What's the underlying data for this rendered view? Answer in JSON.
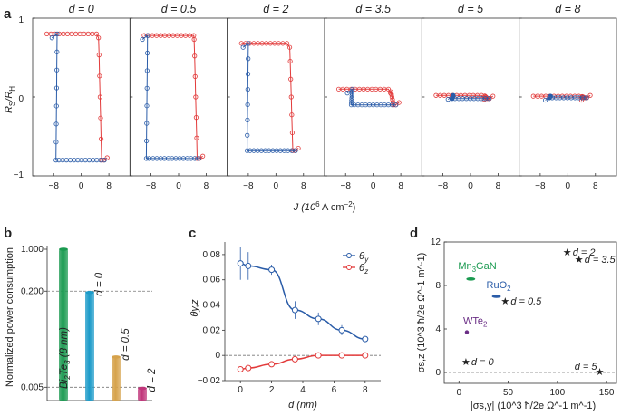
{
  "panel_labels": {
    "a": "a",
    "b": "b",
    "c": "c",
    "d": "d"
  },
  "colors": {
    "blue": "#2a5ca8",
    "red": "#e23a3a",
    "green": "#1a9a50",
    "cyan": "#1c9bc9",
    "gold": "#d6a24b",
    "magenta": "#c0357a",
    "purple": "#6a2e85"
  },
  "chart_data": [
    {
      "type": "line",
      "panel": "a",
      "title": "",
      "ylabel": "R_S/R_H",
      "ylabel_parts": {
        "base": "R",
        "sub1": "S",
        "sep": "/R",
        "sub2": "H"
      },
      "xlabel": "J (10^6 A cm^-2)",
      "xlabel_parts": {
        "pre": "J (10",
        "sup1": "6",
        "mid": " A cm",
        "sup2": "−2",
        "post": ")"
      },
      "xlim": [
        -12,
        12
      ],
      "ylim": [
        -1,
        1
      ],
      "xticks": [
        "−8",
        "0",
        "8"
      ],
      "yticks": [
        "1",
        "0",
        "−1"
      ],
      "subpanels": [
        {
          "title": "d = 0",
          "amp": 0.8,
          "sw_pos": 5,
          "sw_neg": -7,
          "partial": 0.0
        },
        {
          "title": "d = 0.5",
          "amp": 0.78,
          "sw_pos": 4.5,
          "sw_neg": -9,
          "partial": 0.0
        },
        {
          "title": "d = 2",
          "amp": 0.68,
          "sw_pos": 4,
          "sw_neg": -8,
          "partial": 0.0
        },
        {
          "title": "d = 3.5",
          "amp": 0.1,
          "sw_pos": 5,
          "sw_neg": -6,
          "partial": 0.0
        },
        {
          "title": "d = 5",
          "amp": 0.02,
          "sw_pos": 4,
          "sw_neg": -5,
          "partial": 0.0
        },
        {
          "title": "d = 8",
          "amp": 0.01,
          "sw_pos": 4,
          "sw_neg": -5,
          "partial": 0.0
        }
      ]
    },
    {
      "type": "bar",
      "panel": "b",
      "ylabel": "Normalized power consumption",
      "yscale": "log",
      "yticks": [
        "1.000",
        "0.200",
        "0.005"
      ],
      "ytick_values": [
        1.0,
        0.2,
        0.005
      ],
      "categories": [
        "Bi2Te3 (8 nm)",
        "d = 0",
        "d = 0.5",
        "d = 2"
      ],
      "bar_labels": [
        {
          "pre": "Bi",
          "sub1": "2",
          "mid": "Te",
          "sub2": "3",
          "post": " (8 nm)"
        },
        {
          "pre": "d = 0",
          "sub1": "",
          "mid": "",
          "sub2": "",
          "post": ""
        },
        {
          "pre": "d = 0.5",
          "sub1": "",
          "mid": "",
          "sub2": "",
          "post": ""
        },
        {
          "pre": "d = 2",
          "sub1": "",
          "mid": "",
          "sub2": "",
          "post": ""
        }
      ],
      "values": [
        1.0,
        0.19,
        0.016,
        0.0048
      ]
    },
    {
      "type": "line",
      "panel": "c",
      "xlabel": "d (nm)",
      "ylabel": "θy,z",
      "xlim": [
        -1,
        9
      ],
      "ylim": [
        -0.02,
        0.09
      ],
      "xticks": [
        "0",
        "2",
        "4",
        "6",
        "8"
      ],
      "yticks": [
        "0.08",
        "0.06",
        "0.04",
        "0.02",
        "0",
        "−0.02"
      ],
      "series": [
        {
          "name": "θy",
          "legend": "θ",
          "legend_sub": "y",
          "x": [
            0,
            0.5,
            2,
            3.5,
            5,
            6.5,
            8
          ],
          "y": [
            0.073,
            0.071,
            0.068,
            0.036,
            0.029,
            0.02,
            0.013
          ],
          "err": [
            0.013,
            0.011,
            0.004,
            0.007,
            0.005,
            0.004,
            0.002
          ]
        },
        {
          "name": "θz",
          "legend": "θ",
          "legend_sub": "z",
          "x": [
            0,
            0.5,
            2,
            3.5,
            5,
            6.5,
            8
          ],
          "y": [
            -0.011,
            -0.01,
            -0.007,
            -0.003,
            0,
            0,
            0
          ],
          "err": [
            0.002,
            0.002,
            0.001,
            0.001,
            0.001,
            0.001,
            0.001
          ]
        }
      ]
    },
    {
      "type": "scatter",
      "panel": "d",
      "xlabel": "|σs,y| (10^3 ħ/2e Ω^-1 m^-1)",
      "ylabel": "σs,z (10^3 ħ/2e Ω^-1 m^-1)",
      "xlim": [
        -15,
        160
      ],
      "ylim": [
        -1,
        12
      ],
      "xticks": [
        "0",
        "50",
        "100",
        "150"
      ],
      "yticks": [
        "12",
        "8",
        "4",
        "0"
      ],
      "materials": [
        {
          "label": "Mn3GaN",
          "parts": {
            "pre": "Mn",
            "sub": "3",
            "post": "GaN"
          },
          "x": 12,
          "y": 8.6,
          "shape": "ellipse"
        },
        {
          "label": "RuO2",
          "parts": {
            "pre": "RuO",
            "sub": "2",
            "post": ""
          },
          "x": 38,
          "y": 7.0,
          "shape": "ellipse"
        },
        {
          "label": "WTe2",
          "parts": {
            "pre": "WTe",
            "sub": "2",
            "post": ""
          },
          "x": 8,
          "y": 3.7,
          "shape": "dot"
        }
      ],
      "stars": [
        {
          "label": "d = 2",
          "x": 110,
          "y": 11.1
        },
        {
          "label": "d = 3.5",
          "x": 122,
          "y": 10.4
        },
        {
          "label": "d = 0.5",
          "x": 47,
          "y": 6.6
        },
        {
          "label": "d = 0",
          "x": 7,
          "y": 1.0
        },
        {
          "label": "d = 5",
          "x": 143,
          "y": 0.1
        }
      ]
    }
  ]
}
